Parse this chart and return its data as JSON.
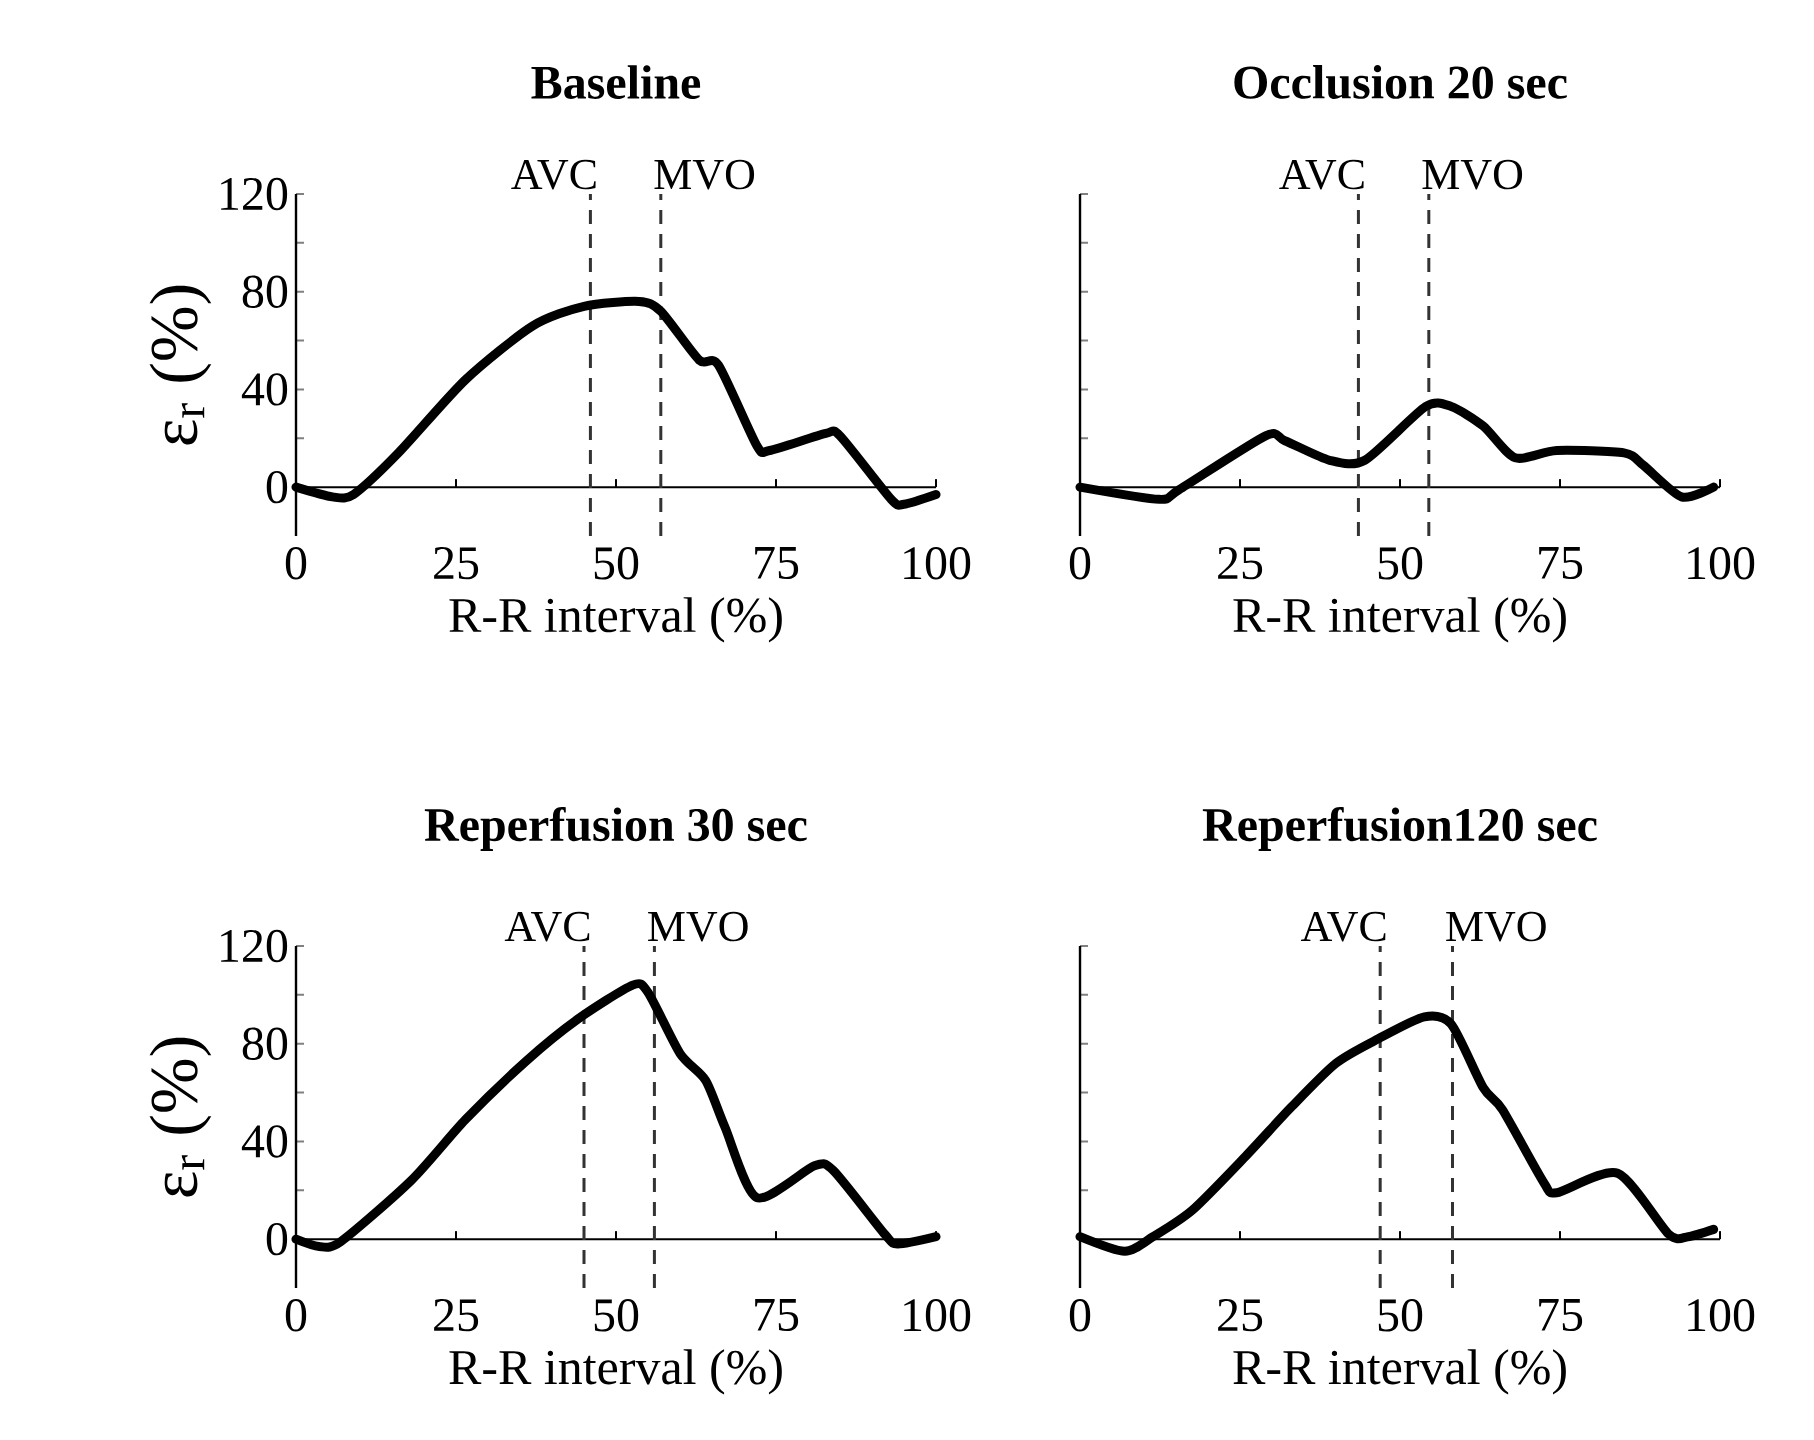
{
  "chart_data": [
    {
      "type": "line",
      "title": "Baseline",
      "xlabel": "R-R interval (%)",
      "ylabel": "ε$_{r}$ (%)",
      "color": "#000000",
      "line_style": "solid",
      "grid": false,
      "x": [
        0,
        5.7,
        9,
        16,
        26.5,
        37,
        45,
        53.6,
        57,
        63,
        66,
        72,
        74,
        82.8,
        85,
        93,
        95,
        100
      ],
      "values": [
        0,
        -4,
        -3,
        14,
        44,
        66,
        74,
        76,
        72,
        52,
        50,
        17,
        15,
        22,
        21,
        -5,
        -7,
        -3
      ],
      "xlim": [
        0,
        100
      ],
      "xticks": [
        0,
        25,
        50,
        75,
        100
      ],
      "ylim": [
        -20,
        120
      ],
      "yticks": [
        0,
        {
          "value": 20,
          "label": null
        },
        40,
        {
          "value": 60,
          "label": null
        },
        80,
        {
          "value": 100,
          "label": null
        },
        120
      ],
      "ref_lines": [
        {
          "axis": "x",
          "value": 46,
          "label": "AVC",
          "color": "#333333",
          "line_style": "dashed"
        },
        {
          "axis": "x",
          "value": 57,
          "label": "MVO",
          "color": "#333333",
          "line_style": "dashed"
        }
      ]
    },
    {
      "type": "line",
      "title": "Occlusion 20 sec",
      "xlabel": "R-R interval (%)",
      "color": "#000000",
      "line_style": "solid",
      "grid": false,
      "tick_labels": "x",
      "x": [
        0,
        12.4,
        15.5,
        29,
        32,
        39,
        44.5,
        54,
        58,
        63,
        68,
        74.5,
        85,
        88,
        94,
        99
      ],
      "values": [
        0,
        -5,
        -1,
        21,
        19,
        11,
        11,
        33,
        33,
        25,
        12,
        15,
        14,
        9,
        -4,
        0
      ],
      "xlim": [
        0,
        100
      ],
      "xticks": [
        0,
        25,
        50,
        75,
        100
      ],
      "ylim": [
        -20,
        120
      ],
      "yticks": [
        0,
        20,
        40,
        60,
        80,
        100,
        120
      ],
      "ref_lines": [
        {
          "axis": "x",
          "value": 43.5,
          "label": "AVC",
          "color": "#333333",
          "line_style": "dashed"
        },
        {
          "axis": "x",
          "value": 54.5,
          "label": "MVO",
          "color": "#333333",
          "line_style": "dashed"
        }
      ]
    },
    {
      "type": "line",
      "title": "Reperfusion 30 sec",
      "xlabel": "R-R interval (%)",
      "ylabel": "ε$_{r}$ (%)",
      "color": "#000000",
      "line_style": "solid",
      "grid": false,
      "x": [
        0,
        3.6,
        7,
        18,
        26.5,
        36,
        44,
        52.6,
        55,
        60,
        64,
        67,
        72,
        81,
        84,
        92,
        94,
        100
      ],
      "values": [
        0,
        -3,
        -1,
        24,
        49,
        73,
        90,
        104,
        101,
        76,
        65,
        46,
        17,
        30,
        28,
        2,
        -2,
        1
      ],
      "xlim": [
        0,
        100
      ],
      "xticks": [
        0,
        25,
        50,
        75,
        100
      ],
      "ylim": [
        -20,
        120
      ],
      "yticks": [
        0,
        {
          "value": 20,
          "label": null
        },
        40,
        {
          "value": 60,
          "label": null
        },
        80,
        {
          "value": 100,
          "label": null
        },
        120
      ],
      "ref_lines": [
        {
          "axis": "x",
          "value": 45,
          "label": "AVC",
          "color": "#333333",
          "line_style": "dashed"
        },
        {
          "axis": "x",
          "value": 56,
          "label": "MVO",
          "color": "#333333",
          "line_style": "dashed"
        }
      ]
    },
    {
      "type": "line",
      "title": "Reperfusion120 sec",
      "xlabel": "R-R interval (%)",
      "color": "#000000",
      "line_style": "solid",
      "grid": false,
      "tick_labels": "x",
      "x": [
        0,
        7,
        11.4,
        17.6,
        25.9,
        33,
        40,
        46.6,
        53.8,
        58,
        63,
        66,
        72.5,
        74.5,
        84,
        92,
        95,
        99
      ],
      "values": [
        1,
        -5,
        1,
        12,
        34,
        54,
        72,
        82,
        91,
        88,
        62,
        53,
        23,
        19,
        27,
        2,
        1,
        4
      ],
      "xlim": [
        0,
        100
      ],
      "xticks": [
        0,
        25,
        50,
        75,
        100
      ],
      "ylim": [
        -20,
        120
      ],
      "yticks": [
        0,
        20,
        40,
        60,
        80,
        100,
        120
      ],
      "ref_lines": [
        {
          "axis": "x",
          "value": 46.9,
          "label": "AVC",
          "color": "#333333",
          "line_style": "dashed"
        },
        {
          "axis": "x",
          "value": 58.2,
          "label": "MVO",
          "color": "#333333",
          "line_style": "dashed"
        }
      ]
    }
  ]
}
